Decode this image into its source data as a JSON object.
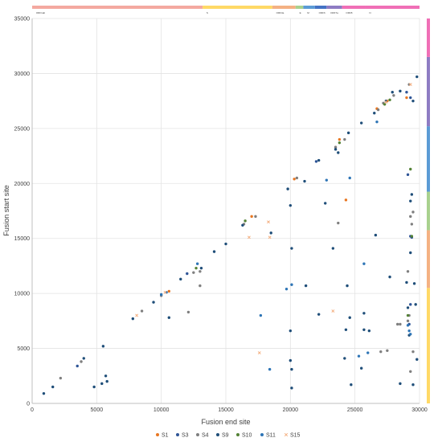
{
  "chart_data": {
    "type": "scatter",
    "xlabel": "Fusion end site",
    "ylabel": "Fusion start site",
    "xlim": [
      0,
      30000
    ],
    "ylim": [
      0,
      35000
    ],
    "x_ticks": [
      "0",
      "5000",
      "10000",
      "15000",
      "20000",
      "25000",
      "30000"
    ],
    "y_ticks": [
      "0",
      "5000",
      "10000",
      "15000",
      "20000",
      "25000",
      "30000",
      "35000"
    ],
    "grid": true,
    "legend_position": "bottom",
    "series": [
      {
        "name": "S1",
        "color": "#e87722",
        "marker": "circle",
        "points": [
          [
            10600,
            10200
          ],
          [
            17000,
            17000
          ],
          [
            20300,
            20400
          ],
          [
            23800,
            24000
          ],
          [
            26700,
            26800
          ],
          [
            27500,
            27500
          ],
          [
            29000,
            27800
          ],
          [
            24300,
            18500
          ]
        ]
      },
      {
        "name": "S3",
        "color": "#2f5597",
        "marker": "circle",
        "points": [
          [
            3500,
            3400
          ],
          [
            12000,
            11800
          ],
          [
            22000,
            22000
          ],
          [
            29000,
            28300
          ],
          [
            29300,
            27800
          ],
          [
            29100,
            20800
          ],
          [
            29300,
            15200
          ],
          [
            29400,
            15100
          ],
          [
            29300,
            9000
          ],
          [
            29200,
            7200
          ]
        ]
      },
      {
        "name": "S4",
        "color": "#7f7f7f",
        "marker": "circle",
        "points": [
          [
            2200,
            2300
          ],
          [
            3800,
            3800
          ],
          [
            8500,
            8400
          ],
          [
            10000,
            9800
          ],
          [
            12500,
            11900
          ],
          [
            13000,
            12000
          ],
          [
            16400,
            16300
          ],
          [
            17300,
            17000
          ],
          [
            20500,
            20500
          ],
          [
            23500,
            23300
          ],
          [
            24200,
            24000
          ],
          [
            26800,
            26700
          ],
          [
            27200,
            27300
          ],
          [
            28000,
            28000
          ],
          [
            29200,
            29000
          ],
          [
            12100,
            8300
          ],
          [
            13000,
            10700
          ],
          [
            23700,
            16400
          ],
          [
            27000,
            4700
          ],
          [
            27500,
            4800
          ],
          [
            28300,
            7200
          ],
          [
            28500,
            7200
          ],
          [
            29100,
            7500
          ],
          [
            29200,
            8000
          ],
          [
            29300,
            17000
          ],
          [
            29400,
            16300
          ],
          [
            29500,
            17400
          ],
          [
            29100,
            12000
          ],
          [
            29300,
            2900
          ],
          [
            29500,
            4700
          ]
        ]
      },
      {
        "name": "S9",
        "color": "#1f4e79",
        "marker": "circle",
        "points": [
          [
            900,
            900
          ],
          [
            1600,
            1500
          ],
          [
            4000,
            4100
          ],
          [
            4800,
            1500
          ],
          [
            5400,
            1800
          ],
          [
            5500,
            5200
          ],
          [
            5700,
            2500
          ],
          [
            5800,
            2000
          ],
          [
            7800,
            7700
          ],
          [
            9400,
            9200
          ],
          [
            10600,
            7800
          ],
          [
            11500,
            11300
          ],
          [
            13100,
            12300
          ],
          [
            14100,
            13800
          ],
          [
            15000,
            14500
          ],
          [
            16300,
            16200
          ],
          [
            18500,
            15500
          ],
          [
            19800,
            19500
          ],
          [
            20100,
            14100
          ],
          [
            20000,
            18000
          ],
          [
            21100,
            20200
          ],
          [
            22200,
            22100
          ],
          [
            23500,
            23100
          ],
          [
            23700,
            22800
          ],
          [
            24500,
            24600
          ],
          [
            25500,
            25500
          ],
          [
            26500,
            26400
          ],
          [
            27400,
            27500
          ],
          [
            27900,
            28300
          ],
          [
            28500,
            28400
          ],
          [
            29500,
            27500
          ],
          [
            29800,
            29700
          ],
          [
            20000,
            6600
          ],
          [
            20000,
            3900
          ],
          [
            20100,
            3100
          ],
          [
            20100,
            1400
          ],
          [
            21200,
            10700
          ],
          [
            22200,
            8100
          ],
          [
            22700,
            18200
          ],
          [
            23300,
            14100
          ],
          [
            24200,
            4100
          ],
          [
            24300,
            6700
          ],
          [
            24400,
            10700
          ],
          [
            24600,
            7800
          ],
          [
            24700,
            1700
          ],
          [
            25500,
            3200
          ],
          [
            25700,
            6700
          ],
          [
            25700,
            8200
          ],
          [
            26100,
            6600
          ],
          [
            26600,
            15300
          ],
          [
            27700,
            11500
          ],
          [
            28500,
            1800
          ],
          [
            29000,
            11000
          ],
          [
            29100,
            8700
          ],
          [
            29200,
            6200
          ],
          [
            29300,
            18400
          ],
          [
            29300,
            13700
          ],
          [
            29400,
            19000
          ],
          [
            29600,
            10900
          ],
          [
            29700,
            9000
          ],
          [
            29800,
            4000
          ],
          [
            29500,
            1700
          ]
        ]
      },
      {
        "name": "S10",
        "color": "#548235",
        "marker": "circle",
        "points": [
          [
            12700,
            12300
          ],
          [
            16500,
            16600
          ],
          [
            23800,
            23700
          ],
          [
            27300,
            27200
          ],
          [
            27700,
            27600
          ],
          [
            29300,
            21300
          ],
          [
            29400,
            15200
          ],
          [
            29100,
            8000
          ]
        ]
      },
      {
        "name": "S11",
        "color": "#2e75b6",
        "marker": "circle",
        "points": [
          [
            10000,
            9900
          ],
          [
            10400,
            10100
          ],
          [
            12800,
            12700
          ],
          [
            17700,
            8000
          ],
          [
            18400,
            3100
          ],
          [
            19700,
            10400
          ],
          [
            20100,
            10800
          ],
          [
            22800,
            20300
          ],
          [
            24600,
            20500
          ],
          [
            25700,
            12700
          ],
          [
            26000,
            4600
          ],
          [
            26700,
            25600
          ],
          [
            25300,
            4300
          ],
          [
            29100,
            7100
          ],
          [
            29300,
            6300
          ],
          [
            29200,
            6600
          ]
        ]
      },
      {
        "name": "S15",
        "color": "#f4b183",
        "marker": "x",
        "points": [
          [
            8100,
            8000
          ],
          [
            10300,
            10100
          ],
          [
            16800,
            15100
          ],
          [
            17600,
            4600
          ],
          [
            18300,
            16500
          ],
          [
            18400,
            15100
          ],
          [
            23300,
            8400
          ],
          [
            27400,
            27400
          ],
          [
            29300,
            29000
          ]
        ]
      }
    ]
  },
  "genome_tracks": {
    "top_labels": [
      "ORF1ab",
      "S",
      "ORF3a",
      "E",
      "M",
      "ORF6",
      "ORF7a",
      "ORF8",
      "N"
    ],
    "top_colors": [
      "#f4a9a0",
      "#ffd966",
      "#f4b183",
      "#a9d18e",
      "#5b9bd5",
      "#4472c4",
      "#8e7cc3",
      "#f06fb6"
    ],
    "right_colors": [
      "#ffd966",
      "#f4b183",
      "#a9d18e",
      "#5b9bd5",
      "#8e7cc3",
      "#f06fb6"
    ]
  }
}
